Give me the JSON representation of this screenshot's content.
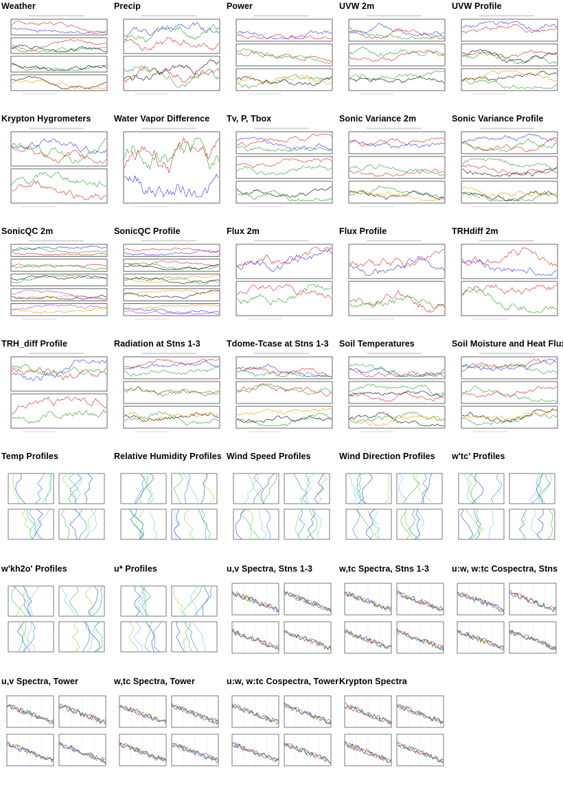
{
  "tiles": [
    {
      "title": "Weather",
      "kind": "strip",
      "panels": 4
    },
    {
      "title": "Precip",
      "kind": "strip",
      "panels": 2
    },
    {
      "title": "Power",
      "kind": "strip",
      "panels": 3
    },
    {
      "title": "UVW 2m",
      "kind": "strip",
      "panels": 3
    },
    {
      "title": "UVW Profile",
      "kind": "strip",
      "panels": 3
    },
    {
      "title": "Krypton Hygrometers",
      "kind": "strip",
      "panels": 2
    },
    {
      "title": "Water Vapor Difference",
      "kind": "strip",
      "panels": 1
    },
    {
      "title": "Tv, P, Tbox",
      "kind": "strip",
      "panels": 3
    },
    {
      "title": "Sonic Variance 2m",
      "kind": "strip",
      "panels": 3
    },
    {
      "title": "Sonic Variance Profile",
      "kind": "strip",
      "panels": 3
    },
    {
      "title": "SonicQC 2m",
      "kind": "strip",
      "panels": 5
    },
    {
      "title": "SonicQC Profile",
      "kind": "strip",
      "panels": 5
    },
    {
      "title": "Flux 2m",
      "kind": "strip",
      "panels": 2
    },
    {
      "title": "Flux Profile",
      "kind": "strip",
      "panels": 2
    },
    {
      "title": "TRHdiff 2m",
      "kind": "strip",
      "panels": 2
    },
    {
      "title": "TRH_diff Profile",
      "kind": "strip",
      "panels": 2
    },
    {
      "title": "Radiation at Stns 1-3",
      "kind": "strip",
      "panels": 3
    },
    {
      "title": "Tdome-Tcase at Stns 1-3",
      "kind": "strip",
      "panels": 3
    },
    {
      "title": "Soil Temperatures",
      "kind": "strip",
      "panels": 3
    },
    {
      "title": "Soil Moisture and Heat Flux",
      "kind": "strip",
      "panels": 3
    },
    {
      "title": "Temp Profiles",
      "kind": "profile",
      "panels": 4
    },
    {
      "title": "Relative Humidity Profiles",
      "kind": "profile",
      "panels": 4
    },
    {
      "title": "Wind Speed Profiles",
      "kind": "profile",
      "panels": 4
    },
    {
      "title": "Wind Direction Profiles",
      "kind": "profile",
      "panels": 4
    },
    {
      "title": "w'tc' Profiles",
      "kind": "profile",
      "panels": 4
    },
    {
      "title": "w'kh2o' Profiles",
      "kind": "profile",
      "panels": 4
    },
    {
      "title": "u* Profiles",
      "kind": "profile",
      "panels": 4
    },
    {
      "title": "u,v Spectra, Stns 1-3",
      "kind": "spectra",
      "panels": 4
    },
    {
      "title": "w,tc Spectra, Stns 1-3",
      "kind": "spectra",
      "panels": 4
    },
    {
      "title": "u:w, w:tc Cospectra, Stns",
      "kind": "spectra",
      "panels": 4
    },
    {
      "title": "u,v Spectra, Tower",
      "kind": "spectra",
      "panels": 4
    },
    {
      "title": "w,tc Spectra, Tower",
      "kind": "spectra",
      "panels": 4
    },
    {
      "title": "u:w, w:tc Cospectra, Tower",
      "kind": "spectra",
      "panels": 4
    },
    {
      "title": "Krypton Spectra",
      "kind": "spectra",
      "panels": 4
    }
  ],
  "colors": {
    "series": [
      "#2a2aff",
      "#e02020",
      "#20a020",
      "#000000",
      "#ff9900",
      "#9b30ff"
    ],
    "profile_lines": [
      "#2a7fff",
      "#33cc33",
      "#88dd44",
      "#66ccff",
      "#1b4fd8"
    ],
    "frame": "#222222"
  },
  "icons": {
    "thumbnail": "plot-thumbnail-icon"
  }
}
